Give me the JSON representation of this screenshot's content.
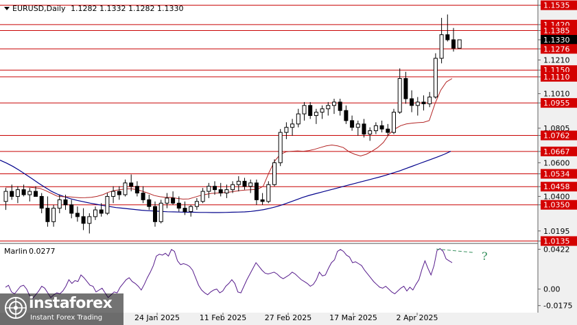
{
  "header": {
    "symbol": "EURUSD,Daily",
    "ohlc": "1.1282 1.1332 1.1282 1.1330"
  },
  "indicator": {
    "name": "Marlin",
    "value": "0.0277"
  },
  "watermark": {
    "brand": "instaforex",
    "tagline": "Instant Forex Trading"
  },
  "annotation": "?",
  "chart_data": [
    {
      "type": "candlestick",
      "title": "EURUSD,Daily",
      "price_range": [
        1.0125,
        1.1558
      ],
      "price_ticks": [
        "1.1535",
        "1.1420",
        "1.1385",
        "1.1330",
        "1.1276",
        "1.1210",
        "1.1150",
        "1.1110",
        "1.1010",
        "1.0955",
        "1.0805",
        "1.0762",
        "1.0667",
        "1.0600",
        "1.0534",
        "1.0458",
        "1.0400",
        "1.0350",
        "1.0195",
        "1.0135"
      ],
      "highlighted_ticks": [
        "1.1535",
        "1.1420",
        "1.1385",
        "1.1276",
        "1.1150",
        "1.1110",
        "1.0955",
        "1.0762",
        "1.0667",
        "1.0534",
        "1.0458",
        "1.0350",
        "1.0135"
      ],
      "current_price": "1.1330",
      "horizontal_levels": [
        1.1535,
        1.142,
        1.1385,
        1.1276,
        1.115,
        1.111,
        1.0955,
        1.0762,
        1.0667,
        1.0534,
        1.0458,
        1.035,
        1.0135
      ],
      "x_labels": [
        "24 Jan 2025",
        "11 Feb 2025",
        "27 Feb 2025",
        "17 Mar 2025",
        "2 Apr 2025"
      ],
      "candles": [
        [
          1.037,
          1.045,
          1.032,
          1.043
        ],
        [
          1.043,
          1.047,
          1.038,
          1.04
        ],
        [
          1.04,
          1.046,
          1.036,
          1.044
        ],
        [
          1.044,
          1.047,
          1.04,
          1.041
        ],
        [
          1.041,
          1.045,
          1.037,
          1.043
        ],
        [
          1.043,
          1.046,
          1.04,
          1.04
        ],
        [
          1.04,
          1.042,
          1.03,
          1.033
        ],
        [
          1.033,
          1.04,
          1.022,
          1.025
        ],
        [
          1.025,
          1.035,
          1.022,
          1.033
        ],
        [
          1.033,
          1.041,
          1.03,
          1.038
        ],
        [
          1.038,
          1.041,
          1.032,
          1.035
        ],
        [
          1.035,
          1.038,
          1.027,
          1.03
        ],
        [
          1.03,
          1.034,
          1.025,
          1.028
        ],
        [
          1.028,
          1.033,
          1.02,
          1.024
        ],
        [
          1.024,
          1.03,
          1.018,
          1.028
        ],
        [
          1.028,
          1.034,
          1.026,
          1.032
        ],
        [
          1.032,
          1.036,
          1.028,
          1.03
        ],
        [
          1.03,
          1.042,
          1.029,
          1.04
        ],
        [
          1.04,
          1.046,
          1.036,
          1.043
        ],
        [
          1.043,
          1.046,
          1.038,
          1.041
        ],
        [
          1.041,
          1.05,
          1.04,
          1.048
        ],
        [
          1.048,
          1.053,
          1.043,
          1.046
        ],
        [
          1.046,
          1.049,
          1.04,
          1.042
        ],
        [
          1.042,
          1.046,
          1.036,
          1.038
        ],
        [
          1.038,
          1.041,
          1.032,
          1.034
        ],
        [
          1.034,
          1.037,
          1.022,
          1.025
        ],
        [
          1.025,
          1.038,
          1.024,
          1.036
        ],
        [
          1.036,
          1.042,
          1.033,
          1.039
        ],
        [
          1.039,
          1.043,
          1.035,
          1.036
        ],
        [
          1.036,
          1.04,
          1.031,
          1.033
        ],
        [
          1.033,
          1.037,
          1.029,
          1.031
        ],
        [
          1.031,
          1.035,
          1.028,
          1.034
        ],
        [
          1.034,
          1.039,
          1.032,
          1.037
        ],
        [
          1.037,
          1.045,
          1.036,
          1.043
        ],
        [
          1.043,
          1.048,
          1.039,
          1.046
        ],
        [
          1.046,
          1.049,
          1.041,
          1.044
        ],
        [
          1.044,
          1.048,
          1.04,
          1.042
        ],
        [
          1.042,
          1.047,
          1.039,
          1.044
        ],
        [
          1.044,
          1.049,
          1.042,
          1.047
        ],
        [
          1.047,
          1.052,
          1.043,
          1.049
        ],
        [
          1.049,
          1.051,
          1.044,
          1.046
        ],
        [
          1.046,
          1.05,
          1.042,
          1.048
        ],
        [
          1.048,
          1.05,
          1.035,
          1.038
        ],
        [
          1.038,
          1.042,
          1.035,
          1.037
        ],
        [
          1.037,
          1.049,
          1.036,
          1.047
        ],
        [
          1.047,
          1.062,
          1.046,
          1.06
        ],
        [
          1.06,
          1.08,
          1.058,
          1.078
        ],
        [
          1.078,
          1.084,
          1.074,
          1.081
        ],
        [
          1.081,
          1.086,
          1.076,
          1.083
        ],
        [
          1.083,
          1.092,
          1.081,
          1.089
        ],
        [
          1.089,
          1.096,
          1.085,
          1.094
        ],
        [
          1.094,
          1.096,
          1.086,
          1.088
        ],
        [
          1.088,
          1.092,
          1.083,
          1.09
        ],
        [
          1.09,
          1.094,
          1.086,
          1.092
        ],
        [
          1.092,
          1.096,
          1.088,
          1.094
        ],
        [
          1.094,
          1.098,
          1.089,
          1.096
        ],
        [
          1.096,
          1.098,
          1.088,
          1.091
        ],
        [
          1.091,
          1.094,
          1.083,
          1.085
        ],
        [
          1.085,
          1.088,
          1.079,
          1.081
        ],
        [
          1.081,
          1.085,
          1.076,
          1.083
        ],
        [
          1.083,
          1.086,
          1.075,
          1.077
        ],
        [
          1.077,
          1.081,
          1.073,
          1.079
        ],
        [
          1.079,
          1.084,
          1.077,
          1.082
        ],
        [
          1.082,
          1.085,
          1.078,
          1.08
        ],
        [
          1.08,
          1.083,
          1.076,
          1.078
        ],
        [
          1.078,
          1.092,
          1.077,
          1.09
        ],
        [
          1.09,
          1.116,
          1.089,
          1.11
        ],
        [
          1.11,
          1.114,
          1.095,
          1.098
        ],
        [
          1.098,
          1.103,
          1.09,
          1.094
        ],
        [
          1.094,
          1.099,
          1.088,
          1.096
        ],
        [
          1.096,
          1.1,
          1.091,
          1.095
        ],
        [
          1.095,
          1.102,
          1.093,
          1.099
        ],
        [
          1.099,
          1.125,
          1.098,
          1.122
        ],
        [
          1.122,
          1.146,
          1.119,
          1.136
        ],
        [
          1.136,
          1.148,
          1.132,
          1.133
        ],
        [
          1.133,
          1.14,
          1.126,
          1.128
        ],
        [
          1.128,
          1.133,
          1.128,
          1.133
        ]
      ],
      "series": [
        {
          "name": "",
          "color": "#00008b",
          "values": [
            1.0615,
            1.0598,
            1.0578,
            1.0555,
            1.053,
            1.0505,
            1.0478,
            1.0454,
            1.043,
            1.0412,
            1.0398,
            1.0386,
            1.0376,
            1.0368,
            1.036,
            1.0353,
            1.0346,
            1.034,
            1.0334,
            1.033,
            1.0326,
            1.0322,
            1.0318,
            1.0315,
            1.0313,
            1.0311,
            1.0309,
            1.0308,
            1.0307,
            1.0306,
            1.0306,
            1.0305,
            1.0305,
            1.0304,
            1.0304,
            1.0305,
            1.0306,
            1.0307,
            1.0308,
            1.0311,
            1.0316,
            1.0322,
            1.033,
            1.034,
            1.0352,
            1.0366,
            1.038,
            1.0394,
            1.0406,
            1.0416,
            1.0426,
            1.0436,
            1.0446,
            1.0456,
            1.0466,
            1.0476,
            1.0486,
            1.0496,
            1.0506,
            1.0516,
            1.0527,
            1.0539,
            1.0551,
            1.0565,
            1.0579,
            1.0593,
            1.0607,
            1.0621,
            1.0635,
            1.065,
            1.0668
          ]
        },
        {
          "name": "",
          "color": "#b22222",
          "values": [
            1.0455,
            1.0456,
            1.0458,
            1.0457,
            1.0455,
            1.0452,
            1.0448,
            1.0435,
            1.0418,
            1.0402,
            1.0398,
            1.0398,
            1.0395,
            1.0392,
            1.0393,
            1.0395,
            1.04,
            1.041,
            1.0425,
            1.0435,
            1.044,
            1.0445,
            1.0445,
            1.044,
            1.043,
            1.0418,
            1.0405,
            1.0398,
            1.0394,
            1.0394,
            1.0388,
            1.0384,
            1.0385,
            1.0395,
            1.0405,
            1.0412,
            1.0418,
            1.042,
            1.0422,
            1.0425,
            1.043,
            1.0435,
            1.0438,
            1.044,
            1.0442,
            1.046,
            1.054,
            1.061,
            1.065,
            1.0665,
            1.0668,
            1.067,
            1.0668,
            1.0672,
            1.068,
            1.069,
            1.07,
            1.0705,
            1.07,
            1.069,
            1.0665,
            1.065,
            1.064,
            1.065,
            1.0668,
            1.069,
            1.072,
            1.077,
            1.08,
            1.082,
            1.083,
            1.0835,
            1.0838,
            1.084,
            1.085,
            1.095,
            1.103,
            1.108,
            1.11
          ]
        }
      ]
    },
    {
      "type": "line",
      "title": "Marlin",
      "value_label": "0.0277",
      "y_ticks": [
        "0.0422",
        "0.00",
        "-0.0175"
      ],
      "ylim": [
        -0.025,
        0.047
      ],
      "series": [
        {
          "name": "Marlin",
          "color": "#551a8b",
          "values": [
            0.002,
            0.004,
            -0.003,
            -0.005,
            -0.001,
            0.003,
            0.004,
            0.0,
            -0.007,
            -0.01,
            -0.006,
            -0.002,
            0.003,
            0.001,
            -0.004,
            -0.009,
            -0.006,
            -0.004,
            -0.005,
            -0.002,
            0.003,
            0.01,
            0.006,
            0.009,
            0.008,
            0.015,
            0.012,
            0.008,
            0.004,
            0.003,
            -0.003,
            -0.001,
            0.001,
            -0.004,
            -0.009,
            -0.006,
            -0.003,
            -0.004,
            0.002,
            0.006,
            0.01,
            0.012,
            0.008,
            0.006,
            0.003,
            -0.001,
            0.005,
            0.012,
            0.018,
            0.025,
            0.035,
            0.037,
            0.036,
            0.038,
            0.035,
            0.042,
            0.04,
            0.03,
            0.026,
            0.027,
            0.026,
            0.024,
            0.02,
            0.012,
            0.004,
            -0.001,
            -0.004,
            -0.006,
            -0.003,
            -0.001,
            0.0,
            -0.004,
            -0.002,
            0.003,
            0.006,
            0.01,
            0.006,
            -0.003,
            -0.004,
            0.003,
            0.01,
            0.016,
            0.022,
            0.028,
            0.024,
            0.02,
            0.017,
            0.016,
            0.017,
            0.018,
            0.016,
            0.013,
            0.011,
            0.013,
            0.015,
            0.018,
            0.016,
            0.013,
            0.01,
            0.008,
            0.006,
            0.003,
            0.005,
            0.01,
            0.018,
            0.014,
            0.015,
            0.022,
            0.028,
            0.031,
            0.04,
            0.042,
            0.04,
            0.036,
            0.034,
            0.028,
            0.029,
            0.027,
            0.025,
            0.02,
            0.016,
            0.012,
            0.008,
            0.005,
            0.002,
            0.001,
            0.003,
            0.0,
            -0.003,
            -0.005,
            -0.002,
            0.001,
            0.003,
            -0.002,
            0.002,
            -0.001,
            0.005,
            0.01,
            0.021,
            0.03,
            0.022,
            0.015,
            0.025,
            0.041,
            0.043,
            0.04,
            0.032,
            0.03,
            0.028
          ]
        },
        {
          "name": "",
          "color": "#2e8b57",
          "dashed": true,
          "values": [
            0.0425,
            0.0388
          ]
        }
      ]
    }
  ]
}
